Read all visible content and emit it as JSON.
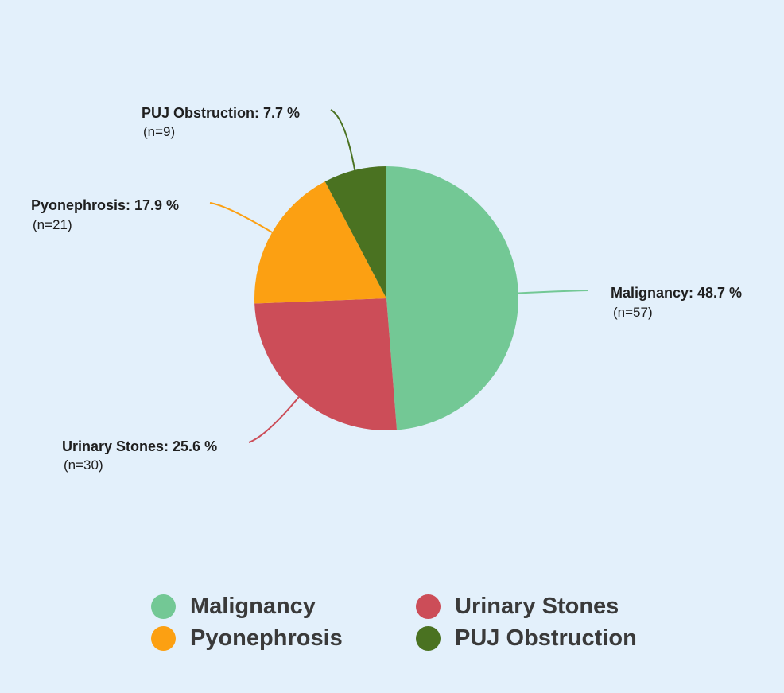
{
  "chart_data": {
    "type": "pie",
    "title": "",
    "slices": [
      {
        "name": "Malignancy",
        "percent": 48.7,
        "n": 57,
        "label": "Malignancy: 48.7 %",
        "count_label": "(n=57)",
        "color": "#73c895"
      },
      {
        "name": "Urinary Stones",
        "percent": 25.6,
        "n": 30,
        "label": "Urinary Stones: 25.6 %",
        "count_label": "(n=30)",
        "color": "#cc4d58"
      },
      {
        "name": "Pyonephrosis",
        "percent": 17.9,
        "n": 21,
        "label": "Pyonephrosis: 17.9 %",
        "count_label": "(n=21)",
        "color": "#fca012"
      },
      {
        "name": "PUJ Obstruction",
        "percent": 7.7,
        "n": 9,
        "label": "PUJ Obstruction: 7.7 %",
        "count_label": "(n=9)",
        "color": "#4a7221"
      }
    ],
    "start_angle": "12 o'clock",
    "direction": "clockwise",
    "legend_position": "bottom"
  },
  "legend": {
    "items": [
      {
        "label": "Malignancy",
        "color": "#73c895"
      },
      {
        "label": "Urinary Stones",
        "color": "#cc4d58"
      },
      {
        "label": "Pyonephrosis",
        "color": "#fca012"
      },
      {
        "label": "PUJ Obstruction",
        "color": "#4a7221"
      }
    ]
  },
  "colors": {
    "background": "#e3f0fb",
    "text": "#1f1f1f",
    "legend_text": "#3a3a3a"
  }
}
